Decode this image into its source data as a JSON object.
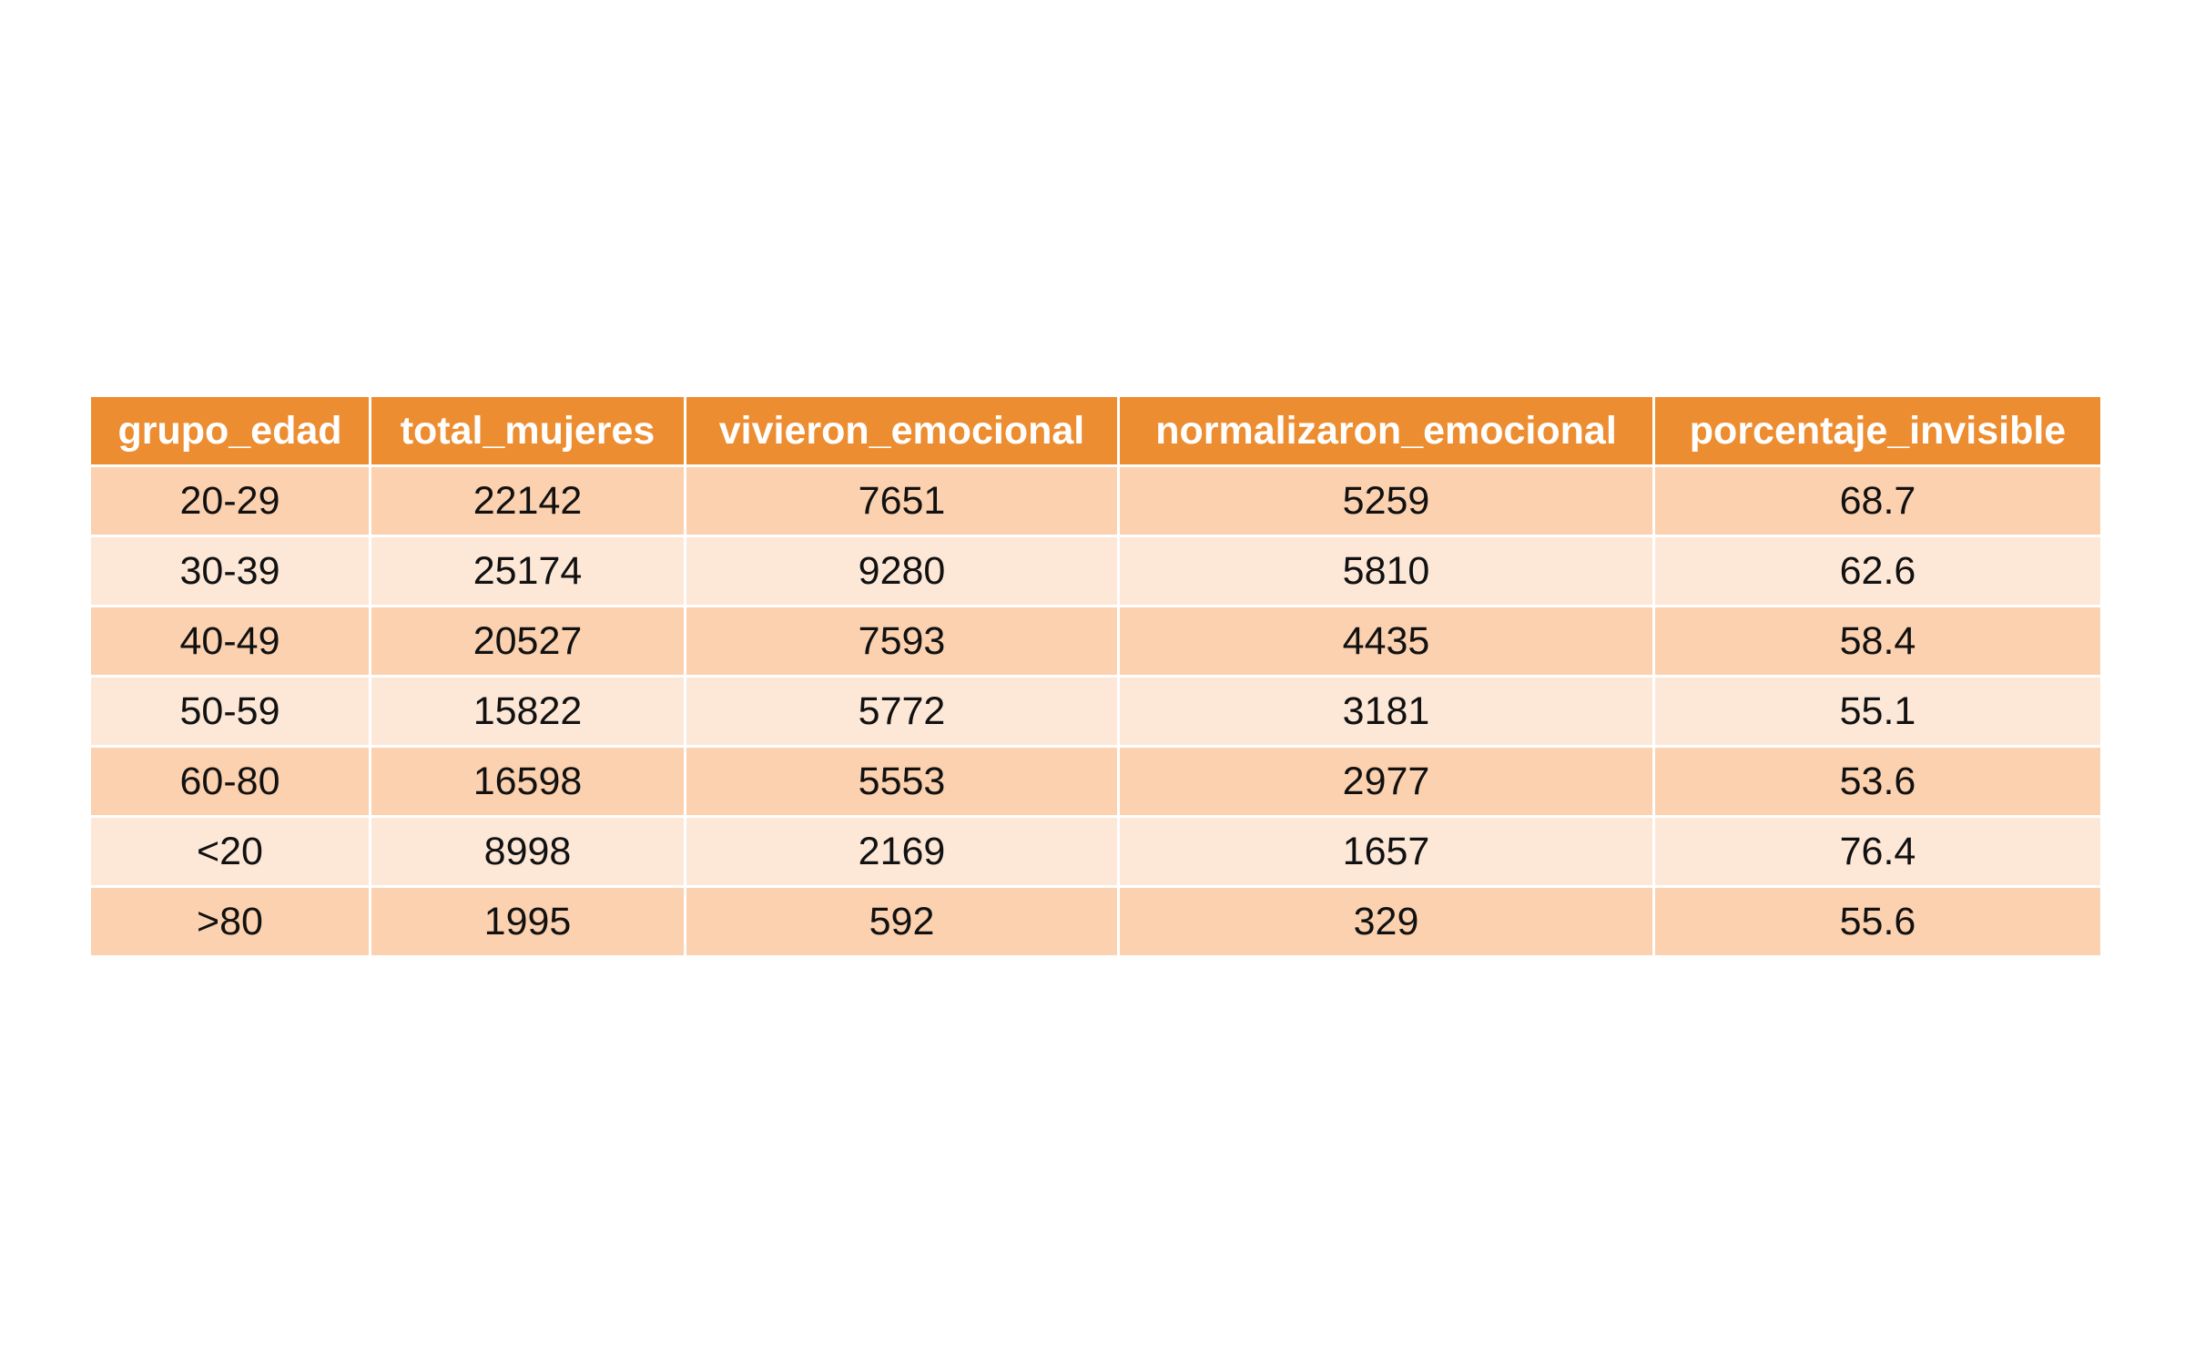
{
  "chart_data": {
    "type": "table",
    "columns": [
      "grupo_edad",
      "total_mujeres",
      "vivieron_emocional",
      "normalizaron_emocional",
      "porcentaje_invisible"
    ],
    "rows": [
      [
        "20-29",
        "22142",
        "7651",
        "5259",
        "68.7"
      ],
      [
        "30-39",
        "25174",
        "9280",
        "5810",
        "62.6"
      ],
      [
        "40-49",
        "20527",
        "7593",
        "4435",
        "58.4"
      ],
      [
        "50-59",
        "15822",
        "5772",
        "3181",
        "55.1"
      ],
      [
        "60-80",
        "16598",
        "5553",
        "2977",
        "53.6"
      ],
      [
        "<20",
        "8998",
        "2169",
        "1657",
        "76.4"
      ],
      [
        ">80",
        "1995",
        "592",
        "329",
        "55.6"
      ]
    ]
  },
  "colors": {
    "header_bg": "#ED8D31",
    "header_text": "#FFFFFF",
    "row_odd_bg": "#FBD1AF",
    "row_even_bg": "#FDE8D8",
    "grid_lines": "#FFFFFF"
  }
}
